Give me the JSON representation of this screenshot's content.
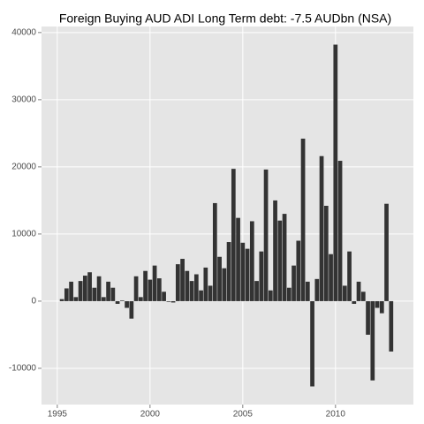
{
  "chart_data": {
    "type": "bar",
    "title": "Foreign Buying AUD ADI Long Term debt: -7.5 AUDbn (NSA)",
    "color": "#333333",
    "x": [
      1995.25,
      1995.5,
      1995.75,
      1996,
      1996.25,
      1996.5,
      1996.75,
      1997,
      1997.25,
      1997.5,
      1997.75,
      1998,
      1998.25,
      1998.5,
      1998.75,
      1999,
      1999.25,
      1999.5,
      1999.75,
      2000,
      2000.25,
      2000.5,
      2000.75,
      2001,
      2001.25,
      2001.5,
      2001.75,
      2002,
      2002.25,
      2002.5,
      2002.75,
      2003,
      2003.25,
      2003.5,
      2003.75,
      2004,
      2004.25,
      2004.5,
      2004.75,
      2005,
      2005.25,
      2005.5,
      2005.75,
      2006,
      2006.25,
      2006.5,
      2006.75,
      2007,
      2007.25,
      2007.5,
      2007.75,
      2008,
      2008.25,
      2008.5,
      2008.75,
      2009,
      2009.25,
      2009.5,
      2009.75,
      2010,
      2010.25,
      2010.5,
      2010.75,
      2011,
      2011.25,
      2011.5,
      2011.75,
      2012,
      2012.25,
      2012.5,
      2012.75,
      2013
    ],
    "values": [
      300,
      1900,
      2900,
      600,
      3000,
      3800,
      4300,
      2000,
      3700,
      600,
      2900,
      2000,
      -400,
      100,
      -1000,
      -2600,
      3700,
      600,
      4500,
      3200,
      5300,
      3400,
      1400,
      -100,
      -200,
      5500,
      6300,
      4500,
      3000,
      4000,
      1600,
      5000,
      2300,
      14600,
      6600,
      4900,
      8800,
      19700,
      12400,
      8700,
      7800,
      11900,
      3000,
      7400,
      19600,
      1600,
      15000,
      12000,
      13000,
      2000,
      5300,
      9000,
      24200,
      2900,
      -12700,
      3300,
      21600,
      14200,
      7000,
      38200,
      20900,
      2300,
      7400,
      -400,
      2900,
      1400,
      -5000,
      -11800,
      -1000,
      -1800,
      14500,
      -7500
    ],
    "xlim": [
      1994.15,
      2014.2
    ],
    "xticks": [
      1995,
      2000,
      2005,
      2010
    ],
    "ylim": [
      -15400,
      40900
    ],
    "yticks": [
      -10000,
      0,
      10000,
      20000,
      30000,
      40000
    ],
    "grid": true
  }
}
